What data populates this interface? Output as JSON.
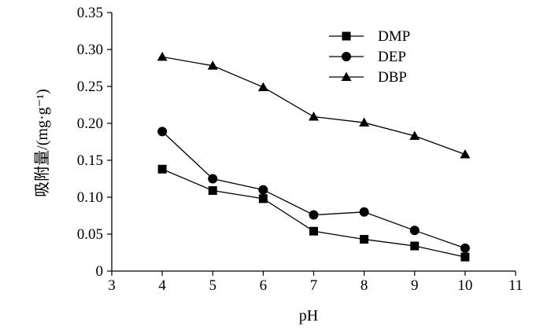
{
  "chart_data": {
    "type": "line",
    "xlabel": "pH",
    "ylabel": "吸附量/(mg·g⁻¹)",
    "xlim": [
      3,
      11
    ],
    "ylim": [
      0,
      0.35
    ],
    "x_ticks": [
      3,
      4,
      5,
      6,
      7,
      8,
      9,
      10,
      11
    ],
    "y_ticks": [
      0,
      0.05,
      0.1,
      0.15,
      0.2,
      0.25,
      0.3,
      0.35
    ],
    "x_tick_labels": [
      "3",
      "4",
      "5",
      "6",
      "7",
      "8",
      "9",
      "10",
      "11"
    ],
    "y_tick_labels": [
      "0",
      "0.05",
      "0.10",
      "0.15",
      "0.20",
      "0.25",
      "0.30",
      "0.35"
    ],
    "grid": false,
    "legend_position": "top-right",
    "x": [
      4,
      5,
      6,
      7,
      8,
      9,
      10
    ],
    "series": [
      {
        "name": "DMP",
        "marker": "square",
        "values": [
          0.138,
          0.109,
          0.098,
          0.054,
          0.043,
          0.034,
          0.019
        ]
      },
      {
        "name": "DEP",
        "marker": "circle",
        "values": [
          0.189,
          0.125,
          0.11,
          0.076,
          0.08,
          0.055,
          0.031
        ]
      },
      {
        "name": "DBP",
        "marker": "triangle",
        "values": [
          0.29,
          0.278,
          0.249,
          0.209,
          0.201,
          0.183,
          0.158
        ]
      }
    ]
  }
}
